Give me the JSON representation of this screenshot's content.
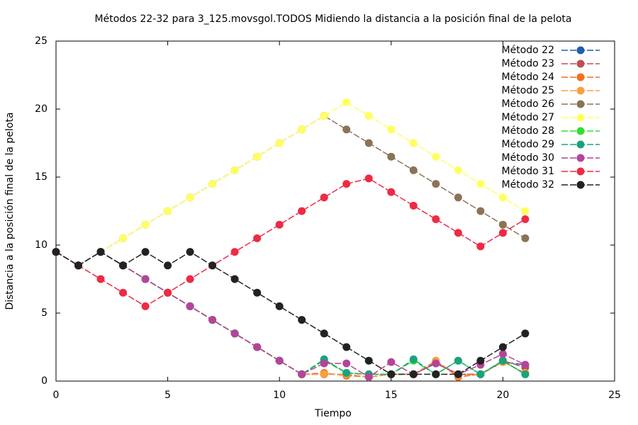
{
  "chart_data": {
    "type": "line",
    "title": "Métodos 22-32 para 3_125.movsgol.TODOS Midiendo la distancia a la posición final de la pelota",
    "xlabel": "Tiempo",
    "ylabel": "Distancia a la posición final de la pelota",
    "x": [
      0,
      1,
      2,
      3,
      4,
      5,
      6,
      7,
      8,
      9,
      10,
      11,
      12,
      13,
      14,
      15,
      16,
      17,
      18,
      19,
      20,
      21
    ],
    "xlim": [
      0,
      25
    ],
    "xticks": [
      0,
      5,
      10,
      15,
      20,
      25
    ],
    "ylim": [
      0,
      25
    ],
    "yticks": [
      0,
      5,
      10,
      15,
      20,
      25
    ],
    "grid": false,
    "legend": "top-right",
    "series": [
      {
        "name": "Método 22",
        "color": "#1f5fae",
        "values": [
          9.5,
          8.5,
          9.5,
          8.5,
          7.5,
          6.5,
          5.5,
          4.5,
          3.5,
          2.5,
          1.5,
          0.5,
          0.5,
          0.5,
          0.3,
          0.5,
          0.5,
          1.3,
          0.5,
          0.5,
          1.4,
          1.2
        ]
      },
      {
        "name": "Método 23",
        "color": "#c0504d",
        "values": [
          9.5,
          8.5,
          9.5,
          8.5,
          7.5,
          6.5,
          5.5,
          4.5,
          3.5,
          2.5,
          1.5,
          0.5,
          0.5,
          0.5,
          0.3,
          0.5,
          0.5,
          1.4,
          0.5,
          0.5,
          1.5,
          1.0
        ]
      },
      {
        "name": "Método 24",
        "color": "#f07020",
        "values": [
          9.5,
          8.5,
          9.5,
          8.5,
          7.5,
          6.5,
          5.5,
          4.5,
          3.5,
          2.5,
          1.5,
          0.5,
          0.6,
          0.4,
          0.3,
          0.5,
          0.5,
          1.5,
          0.3,
          0.5,
          1.5,
          0.5
        ]
      },
      {
        "name": "Método 25",
        "color": "#f8a040",
        "values": [
          9.5,
          8.5,
          9.5,
          8.5,
          7.5,
          6.5,
          5.5,
          4.5,
          3.5,
          2.5,
          1.5,
          0.5,
          0.5,
          0.5,
          0.3,
          0.5,
          0.5,
          1.5,
          0.4,
          0.5,
          1.4,
          0.6
        ]
      },
      {
        "name": "Método 26",
        "color": "#8b7355",
        "values": [
          9.5,
          8.5,
          9.5,
          10.5,
          11.5,
          12.5,
          13.5,
          14.5,
          15.5,
          16.5,
          17.5,
          18.5,
          19.5,
          18.5,
          17.5,
          16.5,
          15.5,
          14.5,
          13.5,
          12.5,
          11.5,
          10.5
        ]
      },
      {
        "name": "Método 27",
        "color": "#ffff60",
        "values": [
          9.5,
          8.5,
          9.5,
          10.5,
          11.5,
          12.5,
          13.5,
          14.5,
          15.5,
          16.5,
          17.5,
          18.5,
          19.5,
          20.5,
          19.5,
          18.5,
          17.5,
          16.5,
          15.5,
          14.5,
          13.5,
          12.5
        ]
      },
      {
        "name": "Método 28",
        "color": "#33dd33",
        "values": [
          9.5,
          8.5,
          9.5,
          8.5,
          7.5,
          6.5,
          5.5,
          4.5,
          3.5,
          2.5,
          1.5,
          0.5,
          1.5,
          0.6,
          0.5,
          0.5,
          1.5,
          0.5,
          1.5,
          0.5,
          1.5,
          0.5
        ]
      },
      {
        "name": "Método 29",
        "color": "#1aa37a",
        "values": [
          9.5,
          8.5,
          9.5,
          8.5,
          7.5,
          6.5,
          5.5,
          4.5,
          3.5,
          2.5,
          1.5,
          0.5,
          1.6,
          0.6,
          0.5,
          0.5,
          1.6,
          0.5,
          1.5,
          0.5,
          1.5,
          0.5
        ]
      },
      {
        "name": "Método 30",
        "color": "#b4449a",
        "values": [
          9.5,
          8.5,
          9.5,
          8.5,
          7.5,
          6.5,
          5.5,
          4.5,
          3.5,
          2.5,
          1.5,
          0.5,
          1.3,
          1.3,
          0.3,
          1.4,
          0.5,
          1.3,
          0.5,
          1.2,
          2.0,
          1.2
        ]
      },
      {
        "name": "Método 31",
        "color": "#ee2a44",
        "values": [
          9.5,
          8.5,
          7.5,
          6.5,
          5.5,
          6.5,
          7.5,
          8.5,
          9.5,
          10.5,
          11.5,
          12.5,
          13.5,
          14.5,
          14.9,
          13.9,
          12.9,
          11.9,
          10.9,
          9.9,
          10.9,
          11.9
        ]
      },
      {
        "name": "Método 32",
        "color": "#222222",
        "values": [
          9.5,
          8.5,
          9.5,
          8.5,
          9.5,
          8.5,
          9.5,
          8.5,
          7.5,
          6.5,
          5.5,
          4.5,
          3.5,
          2.5,
          1.5,
          0.5,
          0.5,
          0.5,
          0.5,
          1.5,
          2.5,
          3.5
        ]
      }
    ]
  }
}
